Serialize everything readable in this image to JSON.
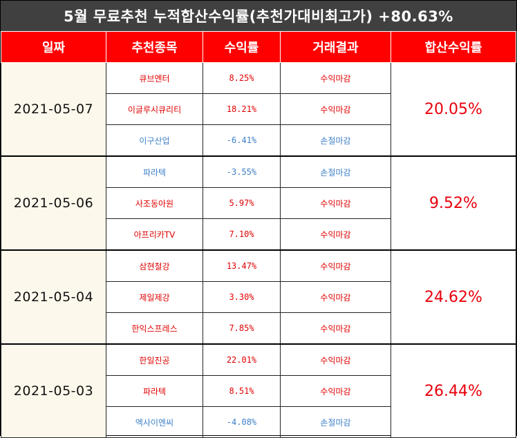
{
  "title": "5월 무료추천 누적합산수익률(추천가대비최고가) +80.63%",
  "headers": [
    "일짜",
    "추천종목",
    "수익률",
    "거래결과",
    "합산수익률"
  ],
  "groups": [
    {
      "date": "2021-05-07",
      "total": "20.05%",
      "rows": [
        {
          "stock": "큐브엔터",
          "rate": "8.25%",
          "result": "수익마감",
          "status": "gain"
        },
        {
          "stock": "이글루시큐리티",
          "rate": "18.21%",
          "result": "수익마감",
          "status": "gain"
        },
        {
          "stock": "이구산업",
          "rate": "-6.41%",
          "result": "손절마감",
          "status": "loss"
        }
      ]
    },
    {
      "date": "2021-05-06",
      "total": "9.52%",
      "rows": [
        {
          "stock": "파라텍",
          "rate": "-3.55%",
          "result": "손절마감",
          "status": "loss"
        },
        {
          "stock": "사조동아원",
          "rate": "5.97%",
          "result": "수익마감",
          "status": "gain"
        },
        {
          "stock": "아프리카TV",
          "rate": "7.10%",
          "result": "수익마감",
          "status": "gain"
        }
      ]
    },
    {
      "date": "2021-05-04",
      "total": "24.62%",
      "rows": [
        {
          "stock": "삼현철강",
          "rate": "13.47%",
          "result": "수익마감",
          "status": "gain"
        },
        {
          "stock": "제일제강",
          "rate": "3.30%",
          "result": "수익마감",
          "status": "gain"
        },
        {
          "stock": "한익스프레스",
          "rate": "7.85%",
          "result": "수익마감",
          "status": "gain"
        }
      ]
    },
    {
      "date": "2021-05-03",
      "total": "26.44%",
      "rows": [
        {
          "stock": "한일진공",
          "rate": "22.01%",
          "result": "수익마감",
          "status": "gain"
        },
        {
          "stock": "파라텍",
          "rate": "8.51%",
          "result": "수익마감",
          "status": "gain"
        },
        {
          "stock": "엑사이엔씨",
          "rate": "-4.08%",
          "result": "손절마감",
          "status": "loss"
        }
      ]
    }
  ],
  "colors": {
    "title_bg": "#404040",
    "header_bg": "#ff0000",
    "gain": "#e00000",
    "loss": "#3b7fc7",
    "date_bg": "#fdf8ec"
  }
}
